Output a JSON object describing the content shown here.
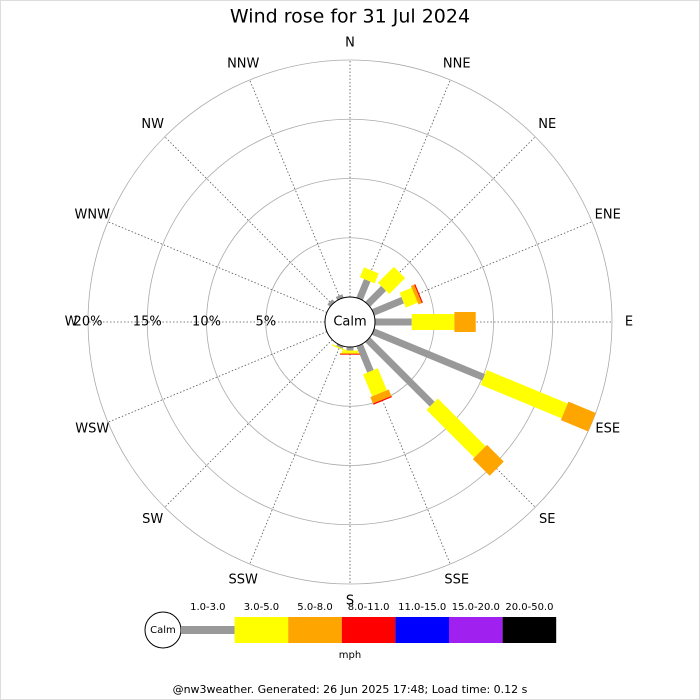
{
  "chart_data": {
    "type": "windrose",
    "title": "Wind rose for 31 Jul 2024",
    "directions": [
      "N",
      "NNE",
      "NE",
      "ENE",
      "E",
      "ESE",
      "SE",
      "SSE",
      "S",
      "SSW",
      "SW",
      "WSW",
      "W",
      "WNW",
      "NW",
      "NNW"
    ],
    "calm_label": "Calm",
    "rlim": [
      0,
      20
    ],
    "rticks": [
      {
        "value": 5,
        "label": "5%"
      },
      {
        "value": 10,
        "label": "10%"
      },
      {
        "value": 15,
        "label": "15%"
      },
      {
        "value": 20,
        "label": "20%"
      }
    ],
    "grid": true,
    "unit": "mph",
    "series": [
      {
        "name": "1.0-3.0",
        "color": "#999999",
        "values": [
          0,
          1.7,
          1.9,
          2.7,
          3.1,
          10.1,
          7.7,
          2.4,
          0.3,
          0.2,
          0,
          0,
          0,
          0,
          0.3,
          0.3
        ]
      },
      {
        "name": "3.0-5.0",
        "color": "#ffff00",
        "values": [
          0,
          0.9,
          1.9,
          1.1,
          3.6,
          7.4,
          5.7,
          2.0,
          0.2,
          0.1,
          0,
          0,
          0,
          0,
          0,
          0
        ]
      },
      {
        "name": "5.0-8.0",
        "color": "#ffa500",
        "values": [
          0,
          0,
          0,
          0.3,
          1.8,
          2.5,
          2.0,
          0.6,
          0.1,
          0,
          0,
          0,
          0,
          0,
          0,
          0
        ]
      },
      {
        "name": "8.0-11.0",
        "color": "#ff0000",
        "values": [
          0,
          0,
          0,
          0.1,
          0,
          0,
          0,
          0.1,
          0.05,
          0,
          0,
          0,
          0,
          0,
          0,
          0
        ]
      },
      {
        "name": "11.0-15.0",
        "color": "#0000ff",
        "values": [
          0,
          0,
          0,
          0,
          0,
          0,
          0,
          0,
          0,
          0,
          0,
          0,
          0,
          0,
          0,
          0
        ]
      },
      {
        "name": "15.0-20.0",
        "color": "#a020f0",
        "values": [
          0,
          0,
          0,
          0,
          0,
          0,
          0,
          0,
          0,
          0,
          0,
          0,
          0,
          0,
          0,
          0
        ]
      },
      {
        "name": "20.0-50.0",
        "color": "#000000",
        "values": [
          0,
          0,
          0,
          0,
          0,
          0,
          0,
          0,
          0,
          0,
          0,
          0,
          0,
          0,
          0,
          0
        ]
      }
    ],
    "footer": "@nw3weather. Generated: 26 Jun 2025 17:48; Load time: 0.12 s"
  }
}
